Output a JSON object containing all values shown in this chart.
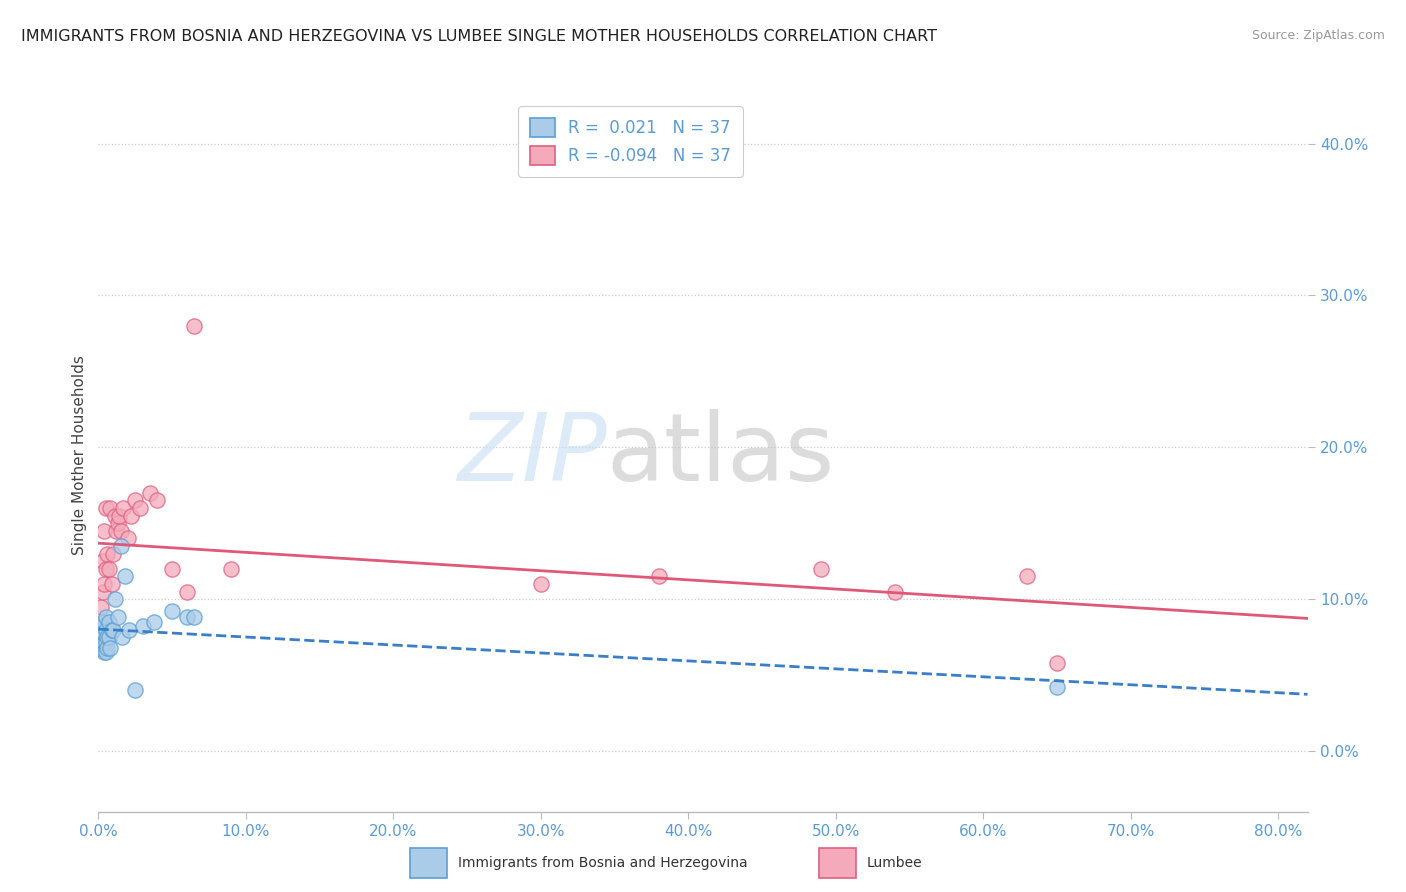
{
  "title": "IMMIGRANTS FROM BOSNIA AND HERZEGOVINA VS LUMBEE SINGLE MOTHER HOUSEHOLDS CORRELATION CHART",
  "source": "Source: ZipAtlas.com",
  "ylabel": "Single Mother Households",
  "legend_r1": "0.021",
  "legend_n1": "37",
  "legend_r2": "-0.094",
  "legend_n2": "37",
  "bosnia_x": [
    0.001,
    0.001,
    0.002,
    0.002,
    0.002,
    0.003,
    0.003,
    0.003,
    0.003,
    0.004,
    0.004,
    0.004,
    0.004,
    0.005,
    0.005,
    0.005,
    0.005,
    0.006,
    0.006,
    0.007,
    0.007,
    0.008,
    0.009,
    0.01,
    0.011,
    0.013,
    0.015,
    0.016,
    0.018,
    0.021,
    0.025,
    0.03,
    0.038,
    0.05,
    0.06,
    0.065,
    0.65
  ],
  "bosnia_y": [
    0.068,
    0.075,
    0.068,
    0.075,
    0.08,
    0.068,
    0.072,
    0.078,
    0.082,
    0.065,
    0.072,
    0.078,
    0.085,
    0.065,
    0.072,
    0.08,
    0.088,
    0.068,
    0.075,
    0.075,
    0.085,
    0.068,
    0.08,
    0.08,
    0.1,
    0.088,
    0.135,
    0.075,
    0.115,
    0.08,
    0.04,
    0.082,
    0.085,
    0.092,
    0.088,
    0.088,
    0.042
  ],
  "lumbee_x": [
    0.001,
    0.001,
    0.002,
    0.002,
    0.003,
    0.003,
    0.004,
    0.004,
    0.005,
    0.005,
    0.006,
    0.007,
    0.008,
    0.009,
    0.01,
    0.011,
    0.012,
    0.013,
    0.014,
    0.015,
    0.017,
    0.02,
    0.022,
    0.025,
    0.028,
    0.035,
    0.04,
    0.05,
    0.06,
    0.065,
    0.09,
    0.3,
    0.38,
    0.49,
    0.54,
    0.63,
    0.65
  ],
  "lumbee_y": [
    0.068,
    0.075,
    0.082,
    0.095,
    0.105,
    0.125,
    0.11,
    0.145,
    0.12,
    0.16,
    0.13,
    0.12,
    0.16,
    0.11,
    0.13,
    0.155,
    0.145,
    0.15,
    0.155,
    0.145,
    0.16,
    0.14,
    0.155,
    0.165,
    0.16,
    0.17,
    0.165,
    0.12,
    0.105,
    0.28,
    0.12,
    0.11,
    0.115,
    0.12,
    0.105,
    0.115,
    0.058
  ],
  "bosnia_face": "#aacce8",
  "bosnia_edge": "#5a9fd4",
  "lumbee_face": "#f4aabb",
  "lumbee_edge": "#e06080",
  "bosnia_line_color": "#3a7ec8",
  "lumbee_line_color": "#e05878",
  "tick_color": "#5b9bd5",
  "grid_color": "#cccccc",
  "bg_color": "#ffffff",
  "xlim": [
    0.0,
    0.82
  ],
  "ylim": [
    -0.04,
    0.43
  ],
  "yticks": [
    0.0,
    0.1,
    0.2,
    0.3,
    0.4
  ],
  "xticks": [
    0.0,
    0.1,
    0.2,
    0.3,
    0.4,
    0.5,
    0.6,
    0.7,
    0.8
  ]
}
